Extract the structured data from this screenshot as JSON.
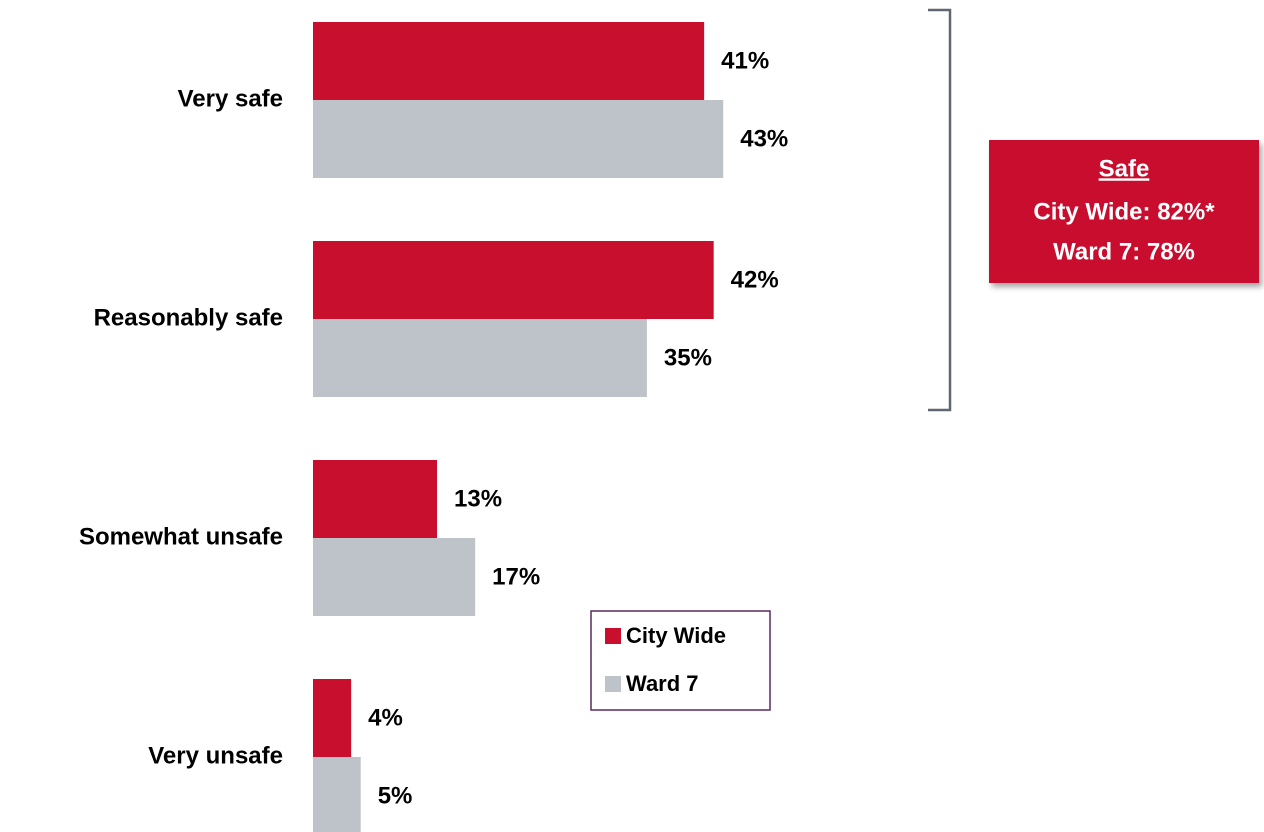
{
  "chart_data": {
    "type": "barh",
    "categories": [
      "Very safe",
      "Reasonably safe",
      "Somewhat unsafe",
      "Very unsafe"
    ],
    "series": [
      {
        "name": "City Wide",
        "color": "#c8102e",
        "values": [
          41,
          42,
          13,
          4
        ],
        "value_labels": [
          "41%",
          "42%",
          "13%",
          "4%"
        ]
      },
      {
        "name": "Ward 7",
        "color": "#bec3c9",
        "values": [
          43,
          35,
          17,
          5
        ],
        "value_labels": [
          "43%",
          "35%",
          "17%",
          "5%"
        ]
      }
    ],
    "legend": "lower-center",
    "annotation": {
      "title": "Safe",
      "lines": [
        "City Wide: 82%*",
        "Ward 7: 78%"
      ]
    }
  }
}
